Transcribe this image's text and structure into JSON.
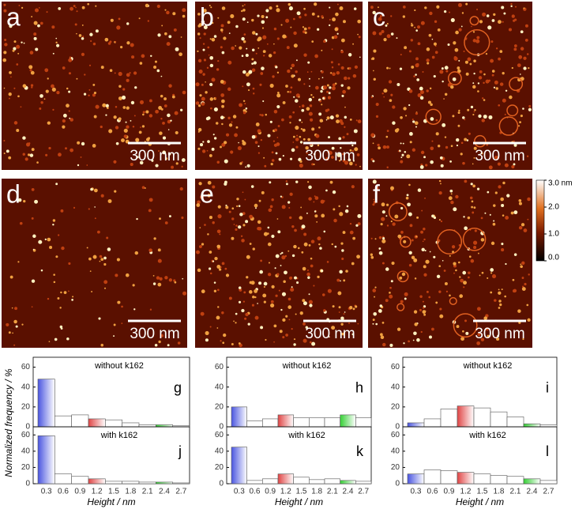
{
  "images": [
    {
      "label": "a",
      "scale_bar": "300 nm"
    },
    {
      "label": "b",
      "scale_bar": "300 nm"
    },
    {
      "label": "c",
      "scale_bar": "300 nm"
    },
    {
      "label": "d",
      "scale_bar": "300 nm"
    },
    {
      "label": "e",
      "scale_bar": "300 nm"
    },
    {
      "label": "f",
      "scale_bar": "300 nm"
    }
  ],
  "colorbar": {
    "lim": [
      0,
      3
    ],
    "ticks": [
      {
        "value": 3.0,
        "label": "3.0 nm"
      },
      {
        "value": 2.0,
        "label": "2.0"
      },
      {
        "value": 1.0,
        "label": "1.0"
      },
      {
        "value": 0.0,
        "label": "0.0"
      }
    ]
  },
  "ylabel": "Normalized frequency / %",
  "chart_data": [
    {
      "type": "bar",
      "panel": "g",
      "annotation": "without k162",
      "values": [
        48,
        11,
        12,
        8,
        7,
        4,
        2,
        2,
        1
      ],
      "colors": [
        "#4a55e0",
        "#ffffff",
        "#ffffff",
        "#e04545",
        "#ffffff",
        "#ffffff",
        "#ffffff",
        "#35d035",
        "#ffffff"
      ],
      "ylim": [
        0,
        70
      ],
      "yticks": [
        0,
        20,
        40,
        60
      ]
    },
    {
      "type": "bar",
      "panel": "j",
      "annotation": "with k162",
      "values": [
        59,
        12,
        9,
        6,
        3,
        3,
        2,
        2,
        1
      ],
      "colors": [
        "#4a55e0",
        "#ffffff",
        "#ffffff",
        "#e04545",
        "#ffffff",
        "#ffffff",
        "#ffffff",
        "#35d035",
        "#ffffff"
      ],
      "ylim": [
        0,
        70
      ],
      "yticks": [
        0,
        20,
        40,
        60
      ],
      "categories": [
        "0.3",
        "0.6",
        "0.9",
        "1.2",
        "1.5",
        "1.8",
        "2.1",
        "2.4",
        "2.7"
      ],
      "xlabel": "Height / nm"
    },
    {
      "type": "bar",
      "panel": "h",
      "annotation": "without k162",
      "values": [
        20,
        6,
        8,
        12,
        9,
        9,
        9,
        12,
        9
      ],
      "colors": [
        "#4a55e0",
        "#ffffff",
        "#ffffff",
        "#e04545",
        "#ffffff",
        "#ffffff",
        "#ffffff",
        "#35d035",
        "#ffffff"
      ],
      "ylim": [
        0,
        70
      ],
      "yticks": [
        0,
        20,
        40,
        60
      ]
    },
    {
      "type": "bar",
      "panel": "k",
      "annotation": "with k162",
      "values": [
        45,
        4,
        6,
        12,
        8,
        5,
        6,
        4,
        3
      ],
      "colors": [
        "#4a55e0",
        "#ffffff",
        "#ffffff",
        "#e04545",
        "#ffffff",
        "#ffffff",
        "#ffffff",
        "#35d035",
        "#ffffff"
      ],
      "ylim": [
        0,
        70
      ],
      "yticks": [
        0,
        20,
        40,
        60
      ],
      "categories": [
        "0.3",
        "0.6",
        "0.9",
        "1.2",
        "1.5",
        "1.8",
        "2.1",
        "2.4",
        "2.7"
      ],
      "xlabel": "Height / nm"
    },
    {
      "type": "bar",
      "panel": "i",
      "annotation": "without k162",
      "values": [
        4,
        8,
        18,
        21,
        19,
        15,
        10,
        3,
        2
      ],
      "colors": [
        "#4a55e0",
        "#ffffff",
        "#ffffff",
        "#e04545",
        "#ffffff",
        "#ffffff",
        "#ffffff",
        "#35d035",
        "#ffffff"
      ],
      "ylim": [
        0,
        70
      ],
      "yticks": [
        0,
        20,
        40,
        60
      ]
    },
    {
      "type": "bar",
      "panel": "l",
      "annotation": "with k162",
      "values": [
        12,
        17,
        16,
        14,
        12,
        10,
        9,
        6,
        4
      ],
      "colors": [
        "#4a55e0",
        "#ffffff",
        "#ffffff",
        "#e04545",
        "#ffffff",
        "#ffffff",
        "#ffffff",
        "#35d035",
        "#ffffff"
      ],
      "ylim": [
        0,
        70
      ],
      "yticks": [
        0,
        20,
        40,
        60
      ],
      "categories": [
        "0.3",
        "0.6",
        "0.9",
        "1.2",
        "1.5",
        "1.8",
        "2.1",
        "2.4",
        "2.7"
      ],
      "xlabel": "Height / nm"
    }
  ]
}
